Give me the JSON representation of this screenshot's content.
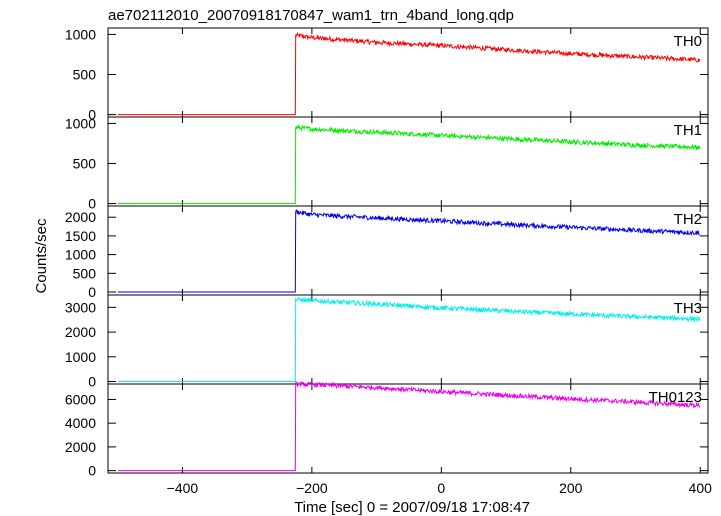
{
  "chart_data": {
    "type": "line",
    "title": "ae702112010_20070918170847_wam1_trn_4band_long.qdp",
    "xlabel": "Time [sec] 0 = 2007/09/18 17:08:47",
    "ylabel": "Counts/sec",
    "xlim": [
      -515,
      412
    ],
    "xticks": [
      -400,
      -200,
      0,
      200,
      400
    ],
    "xtick_labels": [
      "−400",
      "−200",
      "0",
      "200",
      "400"
    ],
    "grid": false,
    "panels": [
      {
        "name": "TH0",
        "color": "#ff0000",
        "ylim": [
          -30,
          1080
        ],
        "yticks": [
          0,
          500,
          1000
        ],
        "ytick_labels": [
          "0",
          "500",
          "1000"
        ],
        "points": [
          [
            -500,
            0
          ],
          [
            -225,
            0
          ],
          [
            -225,
            990
          ],
          [
            -200,
            960
          ],
          [
            -100,
            900
          ],
          [
            0,
            860
          ],
          [
            100,
            810
          ],
          [
            200,
            760
          ],
          [
            300,
            720
          ],
          [
            400,
            680
          ]
        ]
      },
      {
        "name": "TH1",
        "color": "#00ee00",
        "ylim": [
          -30,
          1080
        ],
        "yticks": [
          0,
          500,
          1000
        ],
        "ytick_labels": [
          "0",
          "500",
          "1000"
        ],
        "points": [
          [
            -500,
            0
          ],
          [
            -225,
            0
          ],
          [
            -225,
            950
          ],
          [
            -200,
            930
          ],
          [
            -100,
            890
          ],
          [
            0,
            850
          ],
          [
            100,
            810
          ],
          [
            200,
            770
          ],
          [
            300,
            730
          ],
          [
            400,
            700
          ]
        ]
      },
      {
        "name": "TH2",
        "color": "#0000ee",
        "ylim": [
          -80,
          2300
        ],
        "yticks": [
          0,
          500,
          1000,
          1500,
          2000
        ],
        "ytick_labels": [
          "0",
          "500",
          "1000",
          "1500",
          "2000"
        ],
        "points": [
          [
            -500,
            0
          ],
          [
            -225,
            0
          ],
          [
            -225,
            2150
          ],
          [
            -200,
            2070
          ],
          [
            -100,
            1980
          ],
          [
            0,
            1900
          ],
          [
            100,
            1810
          ],
          [
            200,
            1730
          ],
          [
            300,
            1650
          ],
          [
            400,
            1580
          ]
        ]
      },
      {
        "name": "TH3",
        "color": "#00eeee",
        "ylim": [
          -100,
          3500
        ],
        "yticks": [
          0,
          1000,
          2000,
          3000
        ],
        "ytick_labels": [
          "0",
          "1000",
          "2000",
          "3000"
        ],
        "points": [
          [
            -500,
            0
          ],
          [
            -225,
            0
          ],
          [
            -225,
            3320
          ],
          [
            -200,
            3270
          ],
          [
            -100,
            3130
          ],
          [
            0,
            2980
          ],
          [
            100,
            2850
          ],
          [
            200,
            2730
          ],
          [
            300,
            2620
          ],
          [
            400,
            2530
          ]
        ]
      },
      {
        "name": "TH0123",
        "color": "#ee00ee",
        "ylim": [
          -200,
          7300
        ],
        "yticks": [
          0,
          2000,
          4000,
          6000
        ],
        "ytick_labels": [
          "0",
          "2000",
          "4000",
          "6000"
        ],
        "points": [
          [
            -500,
            0
          ],
          [
            -225,
            0
          ],
          [
            -225,
            7300
          ],
          [
            -200,
            7250
          ],
          [
            -100,
            7000
          ],
          [
            0,
            6650
          ],
          [
            100,
            6350
          ],
          [
            200,
            6050
          ],
          [
            300,
            5780
          ],
          [
            400,
            5480
          ]
        ]
      }
    ]
  }
}
